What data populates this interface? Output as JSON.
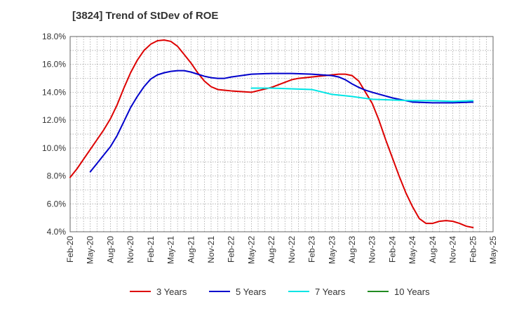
{
  "chart_data": {
    "type": "line",
    "title": "[3824]  Trend of StDev of ROE",
    "xlabel": "",
    "ylabel": "",
    "ylim": [
      4.0,
      18.0
    ],
    "y_ticks": [
      "4.0%",
      "6.0%",
      "8.0%",
      "10.0%",
      "12.0%",
      "14.0%",
      "16.0%",
      "18.0%"
    ],
    "x_ticks": [
      "Feb-20",
      "May-20",
      "Aug-20",
      "Nov-20",
      "Feb-21",
      "May-21",
      "Aug-21",
      "Nov-21",
      "Feb-22",
      "May-22",
      "Aug-22",
      "Nov-22",
      "Feb-23",
      "May-23",
      "Aug-23",
      "Nov-23",
      "Feb-24",
      "May-24",
      "Aug-24",
      "Nov-24",
      "Feb-25",
      "May-25"
    ],
    "x_range": [
      "Feb-20",
      "May-25"
    ],
    "grid": true,
    "legend_position": "bottom",
    "series": [
      {
        "name": "3 Years",
        "color": "#dd0000",
        "x": [
          "Feb-20",
          "Mar-20",
          "Apr-20",
          "May-20",
          "Jun-20",
          "Jul-20",
          "Aug-20",
          "Sep-20",
          "Oct-20",
          "Nov-20",
          "Dec-20",
          "Jan-21",
          "Feb-21",
          "Mar-21",
          "Apr-21",
          "May-21",
          "Jun-21",
          "Jul-21",
          "Aug-21",
          "Sep-21",
          "Oct-21",
          "Nov-21",
          "Dec-21",
          "Jan-22",
          "Feb-22",
          "May-22",
          "Aug-22",
          "Nov-22",
          "Dec-22",
          "Jan-23",
          "Feb-23",
          "May-23",
          "Jun-23",
          "Jul-23",
          "Aug-23",
          "Sep-23",
          "Oct-23",
          "Nov-23",
          "Dec-23",
          "Jan-24",
          "Feb-24",
          "Mar-24",
          "Apr-24",
          "May-24",
          "Jun-24",
          "Jul-24",
          "Aug-24",
          "Sep-24",
          "Oct-24",
          "Nov-24",
          "Dec-24",
          "Jan-25",
          "Feb-25"
        ],
        "values": [
          7.9,
          8.5,
          9.2,
          9.9,
          10.6,
          11.3,
          12.1,
          13.1,
          14.3,
          15.4,
          16.3,
          17.0,
          17.45,
          17.7,
          17.75,
          17.65,
          17.3,
          16.7,
          16.1,
          15.4,
          14.8,
          14.4,
          14.2,
          14.15,
          14.1,
          14.0,
          14.35,
          14.9,
          15.0,
          15.05,
          15.1,
          15.25,
          15.3,
          15.3,
          15.2,
          14.8,
          14.0,
          13.2,
          12.0,
          10.6,
          9.3,
          8.0,
          6.8,
          5.8,
          4.95,
          4.6,
          4.6,
          4.75,
          4.8,
          4.75,
          4.6,
          4.4,
          4.3
        ],
        "_note_removed": true
      },
      {
        "name": "5 Years",
        "color": "#0000cc",
        "x": [
          "May-20",
          "Jun-20",
          "Jul-20",
          "Aug-20",
          "Sep-20",
          "Oct-20",
          "Nov-20",
          "Dec-20",
          "Jan-21",
          "Feb-21",
          "Mar-21",
          "Apr-21",
          "May-21",
          "Jun-21",
          "Jul-21",
          "Aug-21",
          "Sep-21",
          "Oct-21",
          "Nov-21",
          "Dec-21",
          "Jan-22",
          "Feb-22",
          "May-22",
          "Aug-22",
          "Nov-22",
          "Feb-23",
          "May-23",
          "Jun-23",
          "Jul-23",
          "Aug-23",
          "Sep-23",
          "Oct-23",
          "Nov-23",
          "Feb-24",
          "May-24",
          "Aug-24",
          "Nov-24",
          "Feb-25"
        ],
        "values": [
          8.3,
          8.9,
          9.5,
          10.1,
          10.9,
          11.9,
          12.9,
          13.7,
          14.4,
          14.95,
          15.25,
          15.4,
          15.5,
          15.55,
          15.55,
          15.45,
          15.3,
          15.15,
          15.05,
          15.0,
          15.0,
          15.1,
          15.3,
          15.35,
          15.35,
          15.3,
          15.2,
          15.1,
          14.9,
          14.6,
          14.35,
          14.15,
          14.0,
          13.6,
          13.3,
          13.25,
          13.25,
          13.3
        ]
      },
      {
        "name": "7 Years",
        "color": "#00e5e5",
        "x": [
          "May-22",
          "Aug-22",
          "Nov-22",
          "Feb-23",
          "May-23",
          "Aug-23",
          "Nov-23",
          "Feb-24",
          "May-24",
          "Aug-24",
          "Nov-24",
          "Feb-25"
        ],
        "values": [
          14.3,
          14.3,
          14.25,
          14.2,
          13.85,
          13.7,
          13.5,
          13.45,
          13.4,
          13.4,
          13.35,
          13.4
        ]
      },
      {
        "name": "10 Years",
        "color": "#228b22",
        "x": [],
        "values": []
      }
    ]
  }
}
